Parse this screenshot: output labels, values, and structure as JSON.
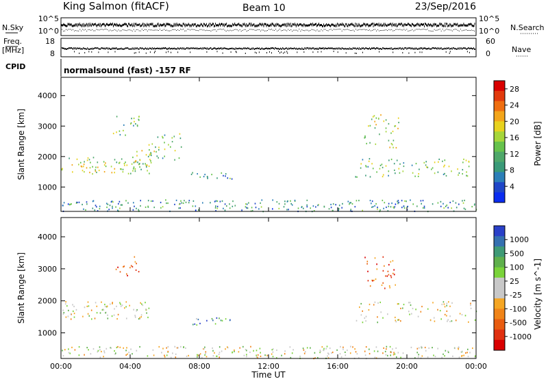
{
  "header": {
    "station": "King Salmon (fitACF)",
    "beam": "Beam 10",
    "date": "23/Sep/2016"
  },
  "aux_panels": {
    "nsky_label": "N.Sky",
    "nsky_ticks": [
      "10^5",
      "10^0"
    ],
    "nsearch_label": "N.Search",
    "nsearch_ticks": [
      "10^5",
      "10^0"
    ],
    "freq_label_1": "Freq.",
    "freq_label_2": "[MHz]",
    "freq_ticks": [
      "18",
      "8"
    ],
    "nave_label": "Nave",
    "nave_ticks": [
      "60",
      "0"
    ],
    "cpid_label": "CPID",
    "cpid_text": "normalsound (fast) -157 RF"
  },
  "colors": {
    "power": [
      "#0a2cf0",
      "#1f46c8",
      "#2c7fb8",
      "#3a9a78",
      "#4fa86a",
      "#66c24c",
      "#a6d63a",
      "#e8d21e",
      "#f3a51a",
      "#ef6e10",
      "#e23a0c",
      "#d90000"
    ],
    "velocity": [
      "#2a40c8",
      "#3570b0",
      "#3f9a76",
      "#5fb04c",
      "#7ad33a",
      "#c8c8c8",
      "#c8c8c8",
      "#f5a623",
      "#f08418",
      "#e85c10",
      "#e03010",
      "#d90000"
    ]
  },
  "chart_data": [
    {
      "type": "heatmap",
      "title": "",
      "xlabel": "",
      "ylabel": "Slant Range [km]",
      "xlim": [
        "00:00",
        "00:00"
      ],
      "xticks": [
        "00:00",
        "04:00",
        "08:00",
        "12:00",
        "16:00",
        "20:00",
        "00:00"
      ],
      "ylim": [
        200,
        4600
      ],
      "yticks": [
        "1000",
        "2000",
        "3000",
        "4000"
      ],
      "colorbar": {
        "label": "Power [dB]",
        "ticks": [
          "4",
          "8",
          "12",
          "16",
          "20",
          "24",
          "28"
        ],
        "range": [
          0,
          30
        ]
      },
      "scatter_regions": [
        {
          "t0": 0.0,
          "t1": 5.2,
          "r0": 1450,
          "r1": 2000,
          "level": 0.5
        },
        {
          "t0": 4.2,
          "t1": 5.6,
          "r0": 1700,
          "r1": 2300,
          "level": 0.6
        },
        {
          "t0": 3.0,
          "t1": 4.5,
          "r0": 2700,
          "r1": 3500,
          "level": 0.4
        },
        {
          "t0": 5.0,
          "t1": 7.0,
          "r0": 1900,
          "r1": 2800,
          "level": 0.45
        },
        {
          "t0": 7.5,
          "t1": 10.0,
          "r0": 1250,
          "r1": 1500,
          "level": 0.35
        },
        {
          "t0": 17.5,
          "t1": 19.5,
          "r0": 2300,
          "r1": 3400,
          "level": 0.5
        },
        {
          "t0": 17.0,
          "t1": 24.0,
          "r0": 1350,
          "r1": 2000,
          "level": 0.45
        },
        {
          "t0": 0.0,
          "t1": 24.0,
          "r0": 220,
          "r1": 600,
          "level": 0.3
        }
      ]
    },
    {
      "type": "heatmap",
      "title": "",
      "xlabel": "Time UT",
      "ylabel": "Slant Range [km]",
      "xlim": [
        "00:00",
        "00:00"
      ],
      "xticks": [
        "00:00",
        "04:00",
        "08:00",
        "12:00",
        "16:00",
        "20:00",
        "00:00"
      ],
      "ylim": [
        200,
        4600
      ],
      "yticks": [
        "1000",
        "2000",
        "3000",
        "4000"
      ],
      "colorbar": {
        "label": "Velocity [m s^-1]",
        "ticks": [
          "1000",
          "500",
          "100",
          "25",
          "-25",
          "-100",
          "-500",
          "-1000"
        ],
        "range": [
          -1000,
          1000
        ]
      },
      "scatter_regions": [
        {
          "t0": 0.0,
          "t1": 5.2,
          "r0": 1450,
          "r1": 2000,
          "level": 0.5
        },
        {
          "t0": 3.0,
          "t1": 4.5,
          "r0": 2800,
          "r1": 3400,
          "level": 0.85
        },
        {
          "t0": 7.6,
          "t1": 10.0,
          "r0": 1250,
          "r1": 1500,
          "level": 0.2
        },
        {
          "t0": 17.5,
          "t1": 19.5,
          "r0": 2400,
          "r1": 3400,
          "level": 0.8
        },
        {
          "t0": 17.0,
          "t1": 24.0,
          "r0": 1350,
          "r1": 2000,
          "level": 0.5
        },
        {
          "t0": 0.0,
          "t1": 24.0,
          "r0": 220,
          "r1": 600,
          "level": 0.5
        }
      ]
    }
  ]
}
